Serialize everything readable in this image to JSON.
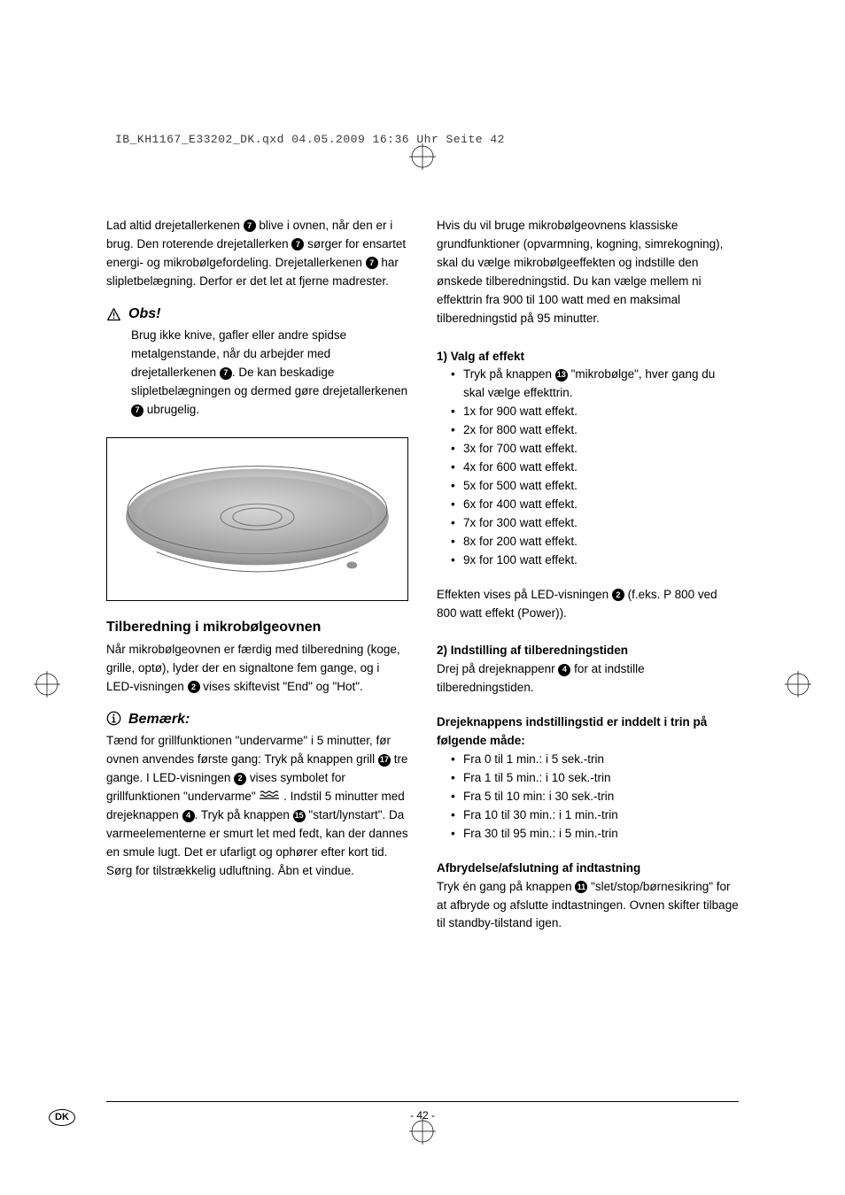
{
  "file_header": "IB_KH1167_E33202_DK.qxd  04.05.2009  16:36 Uhr  Seite 42",
  "left_column": {
    "intro_para_parts": [
      "Lad altid drejetallerkenen ",
      "7",
      " blive i ovnen, når den er i brug. Den roterende drejetallerken ",
      "7",
      " sørger for ensartet energi- og mikrobølgefordeling. Drejetallerkenen ",
      "7",
      " har slipletbelægning. Derfor er det let at fjerne madrester."
    ],
    "obs_heading": "Obs!",
    "obs_para_parts": [
      "Brug ikke knive, gafler eller andre spidse metalgenstande, når du arbejder med drejetallerkenen ",
      "7",
      ". De kan beskadige slipletbelægningen og dermed gøre drejetallerkenen ",
      "7",
      " ubrugelig."
    ],
    "tilberedning_heading": "Tilberedning i mikrobølgeovnen",
    "tilberedning_para_parts": [
      "Når mikrobølgeovnen er færdig med tilberedning (koge, grille, optø), lyder der en signaltone fem gange, og i LED-visningen ",
      "2",
      " vises skiftevist \"End\" og \"Hot\"."
    ],
    "bemaerk_heading": "Bemærk:",
    "bemaerk_para_parts": [
      "Tænd for grillfunktionen \"undervarme\" i 5 minutter, før ovnen anvendes første gang: Tryk på knappen grill ",
      "17",
      " tre gange. I LED-visningen ",
      "2",
      " vises symbolet for grillfunktionen \"undervarme\" ",
      "GRILL_ICON",
      " . Indstil  5 minutter med drejeknappen ",
      "4",
      ". Tryk på knappen ",
      "15",
      " \"start/lynstart\". Da varmeelementerne er smurt let med fedt, kan der dannes en smule lugt. Det er ufarligt og ophører efter kort tid. Sørg for tilstrækkelig udluftning. Åbn et vindue."
    ]
  },
  "right_column": {
    "intro_para": "Hvis du vil bruge mikrobølgeovnens klassiske grundfunktioner (opvarmning, kogning, simrekogning), skal du vælge mikrobølgeeffekten og indstille den ønskede tilberedningstid. Du kan vælge mellem ni effekttrin fra 900 til 100 watt med en maksimal tilberedningstid på 95 minutter.",
    "valg_heading": "1) Valg af effekt",
    "valg_first_bullet_parts": [
      "Tryk på knappen ",
      "13",
      " \"mikrobølge\", hver gang du skal vælge effekttrin."
    ],
    "valg_bullets": [
      "1x for 900 watt effekt.",
      "2x for 800 watt effekt.",
      "3x for 700 watt effekt.",
      "4x for 600 watt effekt.",
      "5x for 500 watt effekt.",
      "6x for 400 watt effekt.",
      "7x for 300 watt effekt.",
      "8x for 200 watt effekt.",
      "9x for 100 watt effekt."
    ],
    "effekt_para_parts": [
      "Effekten vises på LED-visningen ",
      "2",
      " (f.eks. P 800 ved 800 watt effekt (Power))."
    ],
    "indstilling_heading": "2) Indstilling af tilberedningstiden",
    "indstilling_para_parts": [
      "Drej på drejeknappenr ",
      "4",
      " for at indstille tilberedningstiden."
    ],
    "drejeknapp_heading": "Drejeknappens indstillingstid er inddelt i trin på følgende måde:",
    "drejeknapp_bullets": [
      "Fra 0 til 1 min.: i 5 sek.-trin",
      "Fra 1 til 5 min.: i 10 sek.-trin",
      "Fra 5 til 10 min: i 30 sek.-trin",
      "Fra 10 til 30 min.: i 1 min.-trin",
      "Fra 30 til 95 min.: i 5 min.-trin"
    ],
    "afbrydelse_heading": "Afbrydelse/afslutning af indtastning",
    "afbrydelse_para_parts": [
      "Tryk én gang på knappen ",
      "11",
      " \"slet/stop/børnesikring\" for at afbryde og afslutte indtastningen. Ovnen skifter tilbage til standby-tilstand igen."
    ]
  },
  "page_number": "- 42 -",
  "country_code": "DK",
  "colors": {
    "text": "#000000",
    "background": "#ffffff",
    "plate_top": "#b8b8b8",
    "plate_mid": "#d0d0d0",
    "plate_bottom": "#8a8a8a",
    "header_text": "#3a3a3a"
  }
}
